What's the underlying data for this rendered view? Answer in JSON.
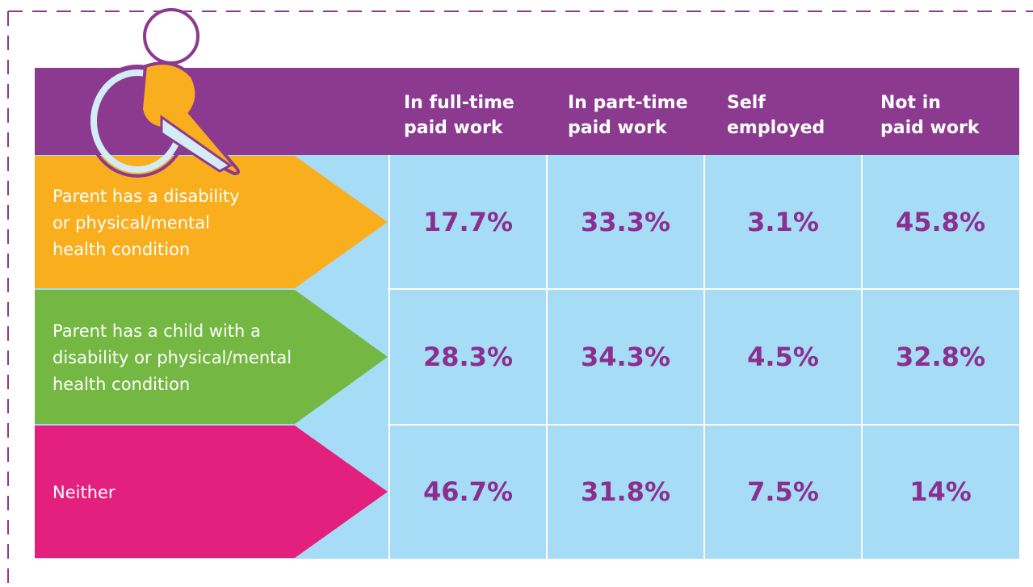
{
  "table": {
    "header": [
      [
        "In full-time",
        "paid work"
      ],
      [
        "In part-time",
        "paid work"
      ],
      [
        "Self",
        "employed"
      ],
      [
        "Not in",
        "paid work"
      ]
    ],
    "rows": [
      {
        "label": [
          "Parent has a disability",
          "or physical/mental",
          "health condition"
        ],
        "cells": [
          "17.7%",
          "33.3%",
          "3.1%",
          "45.8%"
        ]
      },
      {
        "label": [
          "Parent has a child with a",
          "disability or physical/mental",
          "health condition"
        ],
        "cells": [
          "28.3%",
          "34.3%",
          "4.5%",
          "32.8%"
        ]
      },
      {
        "label": [
          "Neither"
        ],
        "cells": [
          "46.7%",
          "31.8%",
          "7.5%",
          "14%"
        ]
      }
    ]
  }
}
